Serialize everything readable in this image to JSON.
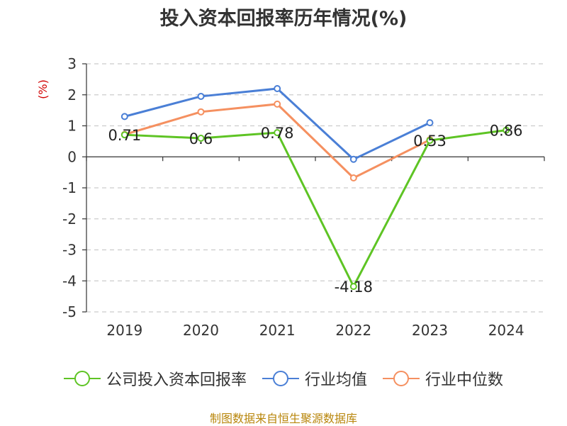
{
  "chart_data": {
    "type": "line",
    "title": "投入资本回报率历年情况(%)",
    "unit_label": "(%)",
    "categories": [
      "2019",
      "2020",
      "2021",
      "2022",
      "2023",
      "2024"
    ],
    "ylim": [
      -5,
      3
    ],
    "yticks": [
      "3",
      "2",
      "1",
      "0",
      "-1",
      "-2",
      "-3",
      "-4",
      "-5"
    ],
    "grid": true,
    "legend_position": "bottom",
    "series": [
      {
        "name": "公司投入资本回报率",
        "color": "#5ec424",
        "values": [
          0.71,
          0.6,
          0.78,
          -4.18,
          0.53,
          0.86
        ],
        "labels": [
          "0.71",
          "0.6",
          "0.78",
          "-4.18",
          "0.53",
          "0.86"
        ]
      },
      {
        "name": "行业均值",
        "color": "#4a7fd6",
        "values": [
          1.3,
          1.95,
          2.2,
          -0.08,
          1.1,
          null
        ]
      },
      {
        "name": "行业中位数",
        "color": "#f59060",
        "values": [
          0.72,
          1.45,
          1.7,
          -0.68,
          0.55,
          null
        ]
      }
    ]
  },
  "source": "制图数据来自恒生聚源数据库"
}
